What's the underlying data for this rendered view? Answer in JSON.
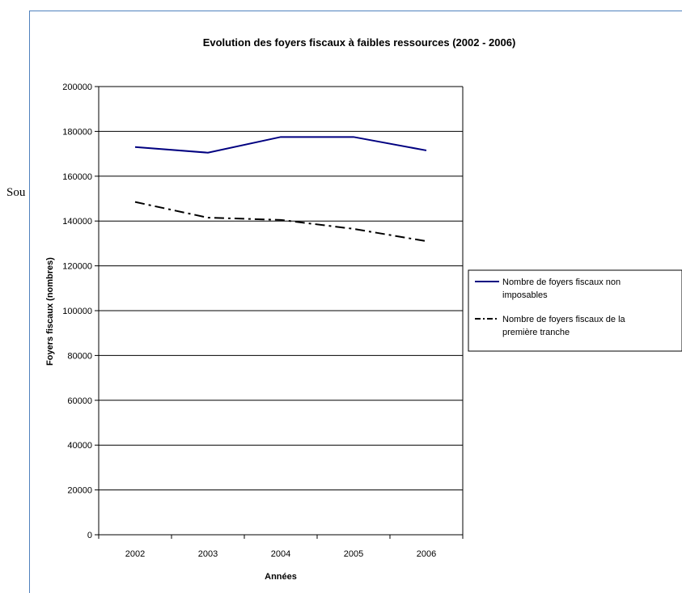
{
  "page": {
    "side_text": "Sou"
  },
  "chart_data": {
    "type": "line",
    "title": "Evolution des foyers fiscaux à faibles ressources (2002 - 2006)",
    "xlabel": "Années",
    "ylabel": "Foyers fiscaux (nombres)",
    "categories": [
      "2002",
      "2003",
      "2004",
      "2005",
      "2006"
    ],
    "ylim": [
      0,
      200000
    ],
    "yticks": [
      0,
      20000,
      40000,
      60000,
      80000,
      100000,
      120000,
      140000,
      160000,
      180000,
      200000
    ],
    "grid": true,
    "legend_position": "right",
    "series": [
      {
        "name": "Nombre de foyers fiscaux non imposables",
        "values": [
          173000,
          170500,
          177500,
          177500,
          171500
        ],
        "color": "#000080",
        "style": "solid"
      },
      {
        "name": "Nombre de foyers fiscaux de la première tranche",
        "values": [
          148500,
          141500,
          140500,
          136500,
          131000
        ],
        "color": "#000000",
        "style": "dash-dot"
      }
    ]
  }
}
